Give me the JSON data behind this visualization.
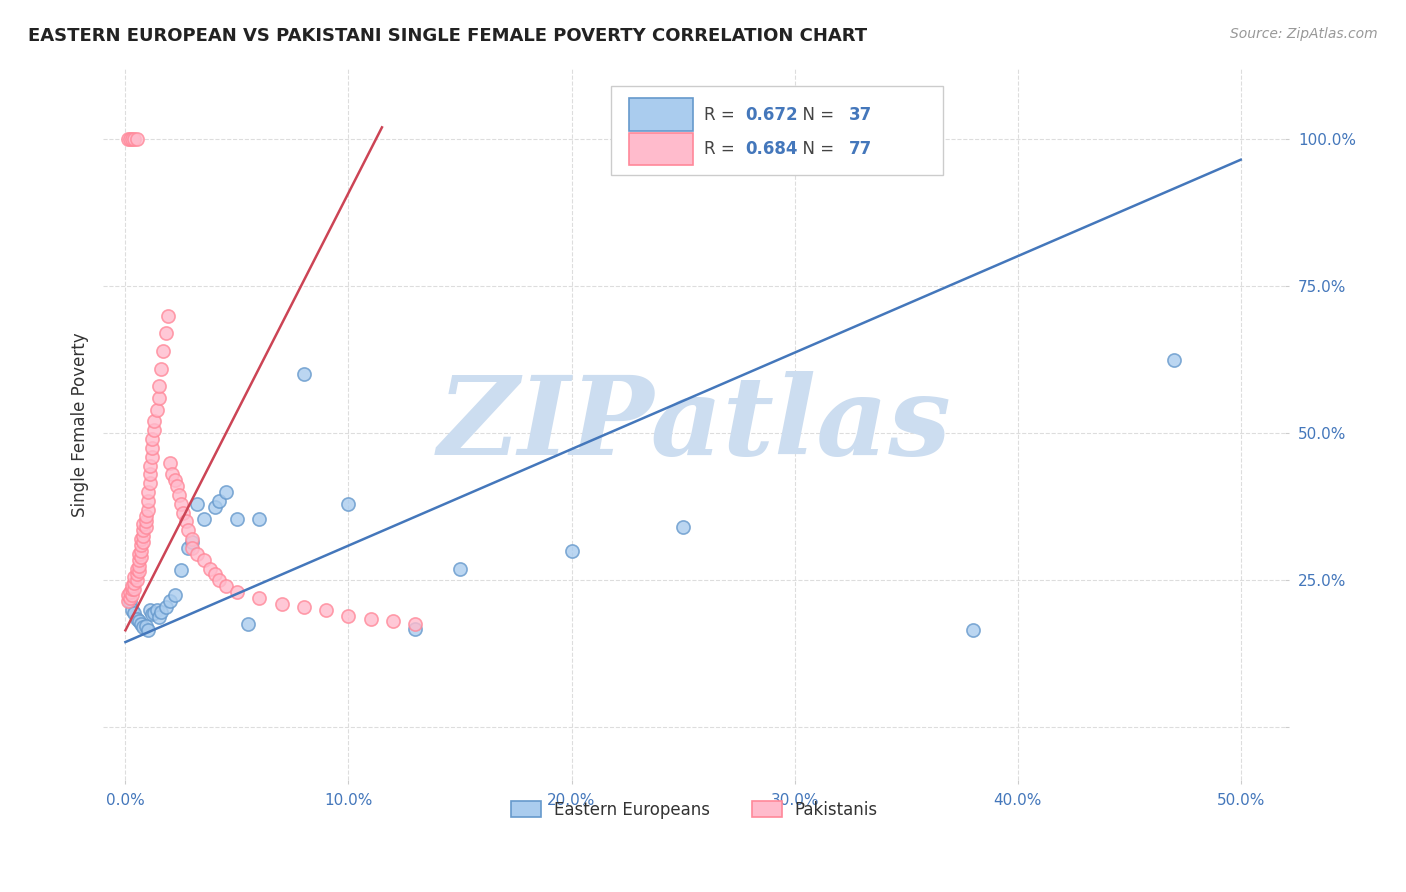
{
  "title": "EASTERN EUROPEAN VS PAKISTANI SINGLE FEMALE POVERTY CORRELATION CHART",
  "source": "Source: ZipAtlas.com",
  "ylabel": "Single Female Poverty",
  "x_ticks": [
    0.0,
    0.1,
    0.2,
    0.3,
    0.4,
    0.5
  ],
  "x_tick_labels": [
    "0.0%",
    "10.0%",
    "20.0%",
    "30.0%",
    "40.0%",
    "50.0%"
  ],
  "y_ticks": [
    0.0,
    0.25,
    0.5,
    0.75,
    1.0
  ],
  "y_tick_labels": [
    "",
    "25.0%",
    "50.0%",
    "75.0%",
    "100.0%"
  ],
  "xlim": [
    -0.01,
    0.52
  ],
  "ylim": [
    -0.09,
    1.12
  ],
  "grid_color": "#dddddd",
  "background_color": "#ffffff",
  "watermark": "ZIPatlas",
  "watermark_color": "#ccddf0",
  "legend_R_blue": "0.672",
  "legend_N_blue": "37",
  "legend_R_pink": "0.684",
  "legend_N_pink": "77",
  "legend_label_blue": "Eastern Europeans",
  "legend_label_pink": "Pakistanis",
  "blue_marker_face": "#aaccee",
  "blue_marker_edge": "#6699cc",
  "pink_marker_face": "#ffbbcc",
  "pink_marker_edge": "#ff8899",
  "blue_line_color": "#4477bb",
  "pink_line_color": "#cc4455",
  "blue_scatter_x": [
    0.002,
    0.003,
    0.004,
    0.005,
    0.006,
    0.007,
    0.008,
    0.009,
    0.01,
    0.011,
    0.012,
    0.013,
    0.014,
    0.015,
    0.016,
    0.018,
    0.02,
    0.022,
    0.025,
    0.028,
    0.03,
    0.032,
    0.035,
    0.04,
    0.042,
    0.045,
    0.05,
    0.055,
    0.06,
    0.08,
    0.1,
    0.13,
    0.15,
    0.2,
    0.25,
    0.38,
    0.47
  ],
  "blue_scatter_y": [
    0.215,
    0.2,
    0.195,
    0.185,
    0.18,
    0.175,
    0.17,
    0.172,
    0.165,
    0.2,
    0.192,
    0.195,
    0.2,
    0.188,
    0.196,
    0.205,
    0.215,
    0.225,
    0.268,
    0.305,
    0.315,
    0.38,
    0.355,
    0.375,
    0.385,
    0.4,
    0.355,
    0.175,
    0.355,
    0.6,
    0.38,
    0.168,
    0.27,
    0.3,
    0.34,
    0.165,
    0.625
  ],
  "pink_scatter_x": [
    0.001,
    0.001,
    0.002,
    0.002,
    0.003,
    0.003,
    0.003,
    0.004,
    0.004,
    0.004,
    0.005,
    0.005,
    0.005,
    0.006,
    0.006,
    0.006,
    0.006,
    0.007,
    0.007,
    0.007,
    0.007,
    0.008,
    0.008,
    0.008,
    0.008,
    0.009,
    0.009,
    0.009,
    0.01,
    0.01,
    0.01,
    0.011,
    0.011,
    0.011,
    0.012,
    0.012,
    0.012,
    0.013,
    0.013,
    0.014,
    0.015,
    0.015,
    0.016,
    0.017,
    0.018,
    0.019,
    0.02,
    0.021,
    0.022,
    0.023,
    0.024,
    0.025,
    0.026,
    0.027,
    0.028,
    0.03,
    0.03,
    0.032,
    0.035,
    0.038,
    0.04,
    0.042,
    0.045,
    0.05,
    0.06,
    0.07,
    0.08,
    0.09,
    0.1,
    0.11,
    0.12,
    0.13,
    0.001,
    0.002,
    0.003,
    0.004,
    0.005
  ],
  "pink_scatter_y": [
    0.215,
    0.225,
    0.22,
    0.23,
    0.225,
    0.235,
    0.24,
    0.235,
    0.245,
    0.255,
    0.25,
    0.26,
    0.27,
    0.265,
    0.275,
    0.285,
    0.295,
    0.29,
    0.3,
    0.31,
    0.32,
    0.315,
    0.325,
    0.335,
    0.345,
    0.34,
    0.35,
    0.36,
    0.37,
    0.385,
    0.4,
    0.415,
    0.43,
    0.445,
    0.46,
    0.475,
    0.49,
    0.505,
    0.52,
    0.54,
    0.56,
    0.58,
    0.61,
    0.64,
    0.67,
    0.7,
    0.45,
    0.43,
    0.42,
    0.41,
    0.395,
    0.38,
    0.365,
    0.35,
    0.335,
    0.32,
    0.305,
    0.295,
    0.285,
    0.27,
    0.26,
    0.25,
    0.24,
    0.23,
    0.22,
    0.21,
    0.205,
    0.2,
    0.19,
    0.185,
    0.18,
    0.175,
    1.0,
    1.0,
    1.0,
    1.0,
    1.0
  ],
  "blue_line_x": [
    0.0,
    0.5
  ],
  "blue_line_y": [
    0.145,
    0.965
  ],
  "pink_line_x": [
    0.0,
    0.115
  ],
  "pink_line_y": [
    0.165,
    1.02
  ]
}
